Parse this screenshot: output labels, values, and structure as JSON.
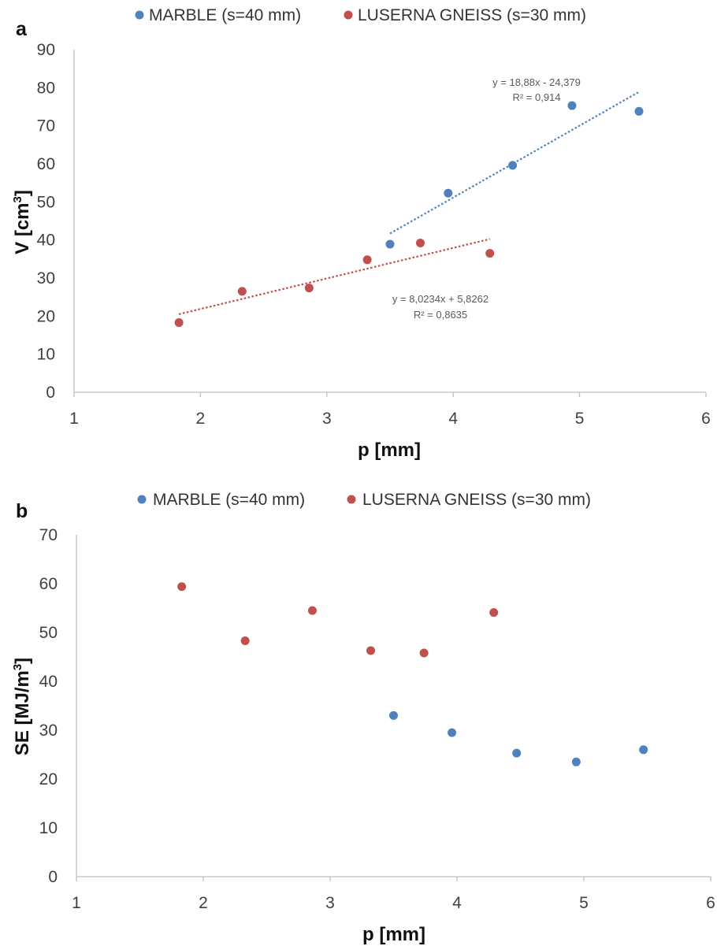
{
  "colors": {
    "marble": "#4F81BD",
    "gneiss": "#C0504D",
    "axis": "#BFBFBF"
  },
  "chart_data": [
    {
      "type": "scatter",
      "panel_label": "a",
      "xlabel": "p [mm]",
      "ylabel_main": "V [cm",
      "ylabel_sup": "3",
      "ylabel_end": "]",
      "xlim": [
        1,
        6
      ],
      "ylim": [
        0,
        90
      ],
      "xticks": [
        "1",
        "2",
        "3",
        "4",
        "5",
        "6"
      ],
      "yticks": [
        "0",
        "10",
        "20",
        "30",
        "40",
        "50",
        "60",
        "70",
        "80",
        "90"
      ],
      "legend": {
        "position": "top-center"
      },
      "series": [
        {
          "name": "MARBLE (s=40 mm)",
          "x": [
            3.5,
            3.96,
            4.47,
            4.94,
            5.47
          ],
          "y": [
            38.9,
            52.3,
            59.6,
            75.3,
            73.8
          ],
          "trendline": {
            "type": "linear",
            "slope": 18.88,
            "intercept": -24.379,
            "x_range": [
              3.5,
              5.47
            ],
            "equation": "y = 18,88x - 24,379",
            "r2": "R² = 0,914"
          }
        },
        {
          "name": "LUSERNA GNEISS (s=30 mm)",
          "x": [
            1.83,
            2.33,
            2.86,
            3.32,
            3.74,
            4.29
          ],
          "y": [
            18.3,
            26.5,
            27.4,
            34.8,
            39.2,
            36.5
          ],
          "trendline": {
            "type": "linear",
            "slope": 8.0234,
            "intercept": 5.8262,
            "x_range": [
              1.83,
              4.29
            ],
            "equation": "y = 8,0234x + 5,8262",
            "r2": "R² = 0,8635"
          }
        }
      ]
    },
    {
      "type": "scatter",
      "panel_label": "b",
      "xlabel": "p [mm]",
      "ylabel_main": "SE [MJ/m",
      "ylabel_sup": "3",
      "ylabel_end": "]",
      "xlim": [
        1,
        6
      ],
      "ylim": [
        0,
        70
      ],
      "xticks": [
        "1",
        "2",
        "3",
        "4",
        "5",
        "6"
      ],
      "yticks": [
        "0",
        "10",
        "20",
        "30",
        "40",
        "50",
        "60",
        "70"
      ],
      "legend": {
        "position": "top-center"
      },
      "series": [
        {
          "name": "MARBLE (s=40 mm)",
          "x": [
            3.5,
            3.96,
            4.47,
            4.94,
            5.47
          ],
          "y": [
            33.0,
            29.5,
            25.3,
            23.5,
            26.0
          ]
        },
        {
          "name": "LUSERNA GNEISS (s=30 mm)",
          "x": [
            1.83,
            2.33,
            2.86,
            3.32,
            3.74,
            4.29
          ],
          "y": [
            59.4,
            48.3,
            54.5,
            46.3,
            45.8,
            54.1
          ]
        }
      ]
    }
  ]
}
